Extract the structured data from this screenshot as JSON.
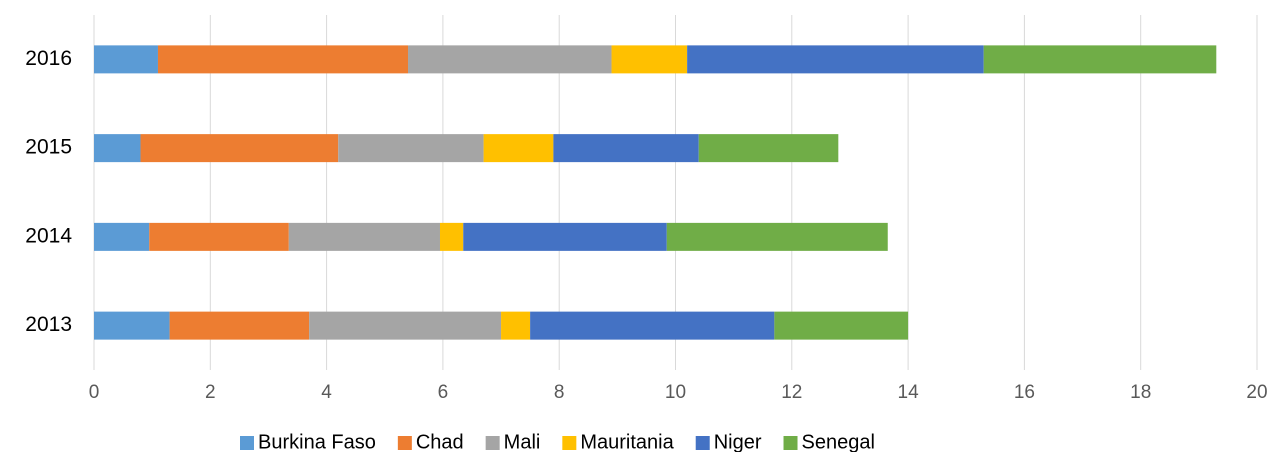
{
  "chart_data": {
    "type": "stacked-barh",
    "categories": [
      "2013",
      "2014",
      "2015",
      "2016"
    ],
    "series": [
      {
        "name": "Burkina Faso",
        "color": "#5b9bd5",
        "values": [
          1.3,
          0.95,
          0.8,
          1.1
        ]
      },
      {
        "name": "Chad",
        "color": "#ed7d31",
        "values": [
          2.4,
          2.4,
          3.4,
          4.3
        ]
      },
      {
        "name": "Mali",
        "color": "#a5a5a5",
        "values": [
          3.3,
          2.6,
          2.5,
          3.5
        ]
      },
      {
        "name": "Mauritania",
        "color": "#ffc000",
        "values": [
          0.5,
          0.4,
          1.2,
          1.3
        ]
      },
      {
        "name": "Niger",
        "color": "#4472c4",
        "values": [
          4.2,
          3.5,
          2.5,
          5.1
        ]
      },
      {
        "name": "Senegal",
        "color": "#70ad47",
        "values": [
          2.3,
          3.8,
          2.4,
          4.0
        ]
      }
    ],
    "xlim": [
      0,
      20
    ],
    "xticks": [
      0,
      2,
      4,
      6,
      8,
      10,
      12,
      14,
      16,
      18,
      20
    ],
    "grid": true,
    "legend": "bottom"
  }
}
